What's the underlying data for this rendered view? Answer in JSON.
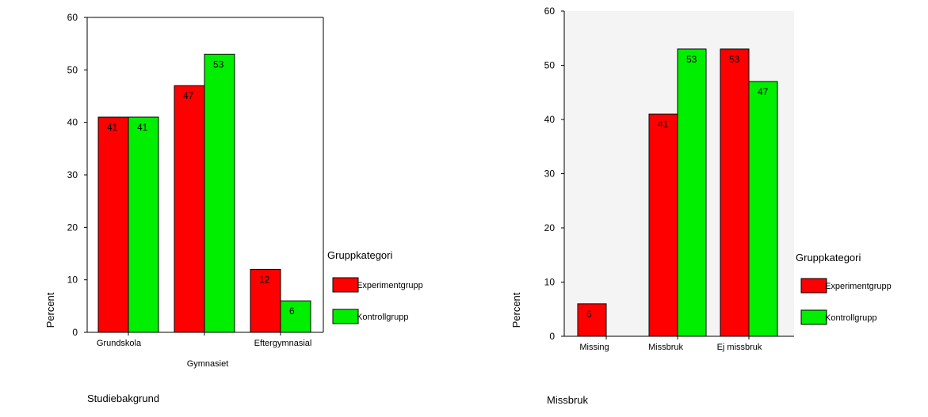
{
  "colors": {
    "experiment": "#ff0000",
    "control": "#00ee00",
    "plot_bg_right": "#f4f4f4"
  },
  "chart_data": [
    {
      "type": "bar",
      "categories": [
        "Grundskola",
        "Gymnasiet",
        "Eftergymnasial"
      ],
      "series": [
        {
          "name": "Experimentgrupp",
          "values": [
            41,
            47,
            12
          ],
          "labels": [
            "41",
            "47",
            "12"
          ]
        },
        {
          "name": "Kontrollgrupp",
          "values": [
            41,
            53,
            6
          ],
          "labels": [
            "41",
            "53",
            "6"
          ]
        }
      ],
      "ylim": [
        0,
        60
      ],
      "yticks": [
        "0",
        "10",
        "20",
        "30",
        "40",
        "50",
        "60"
      ],
      "xlabel": "Studiebakgrund",
      "ylabel": "Percent",
      "legend_title": "Gruppkategori",
      "legend": [
        "Experimentgrupp",
        "Kontrollgrupp"
      ],
      "legend_position": "right"
    },
    {
      "type": "bar",
      "categories": [
        "Missing",
        "Missbruk",
        "Ej missbruk"
      ],
      "series": [
        {
          "name": "Experimentgrupp",
          "values": [
            6,
            41,
            53
          ],
          "labels": [
            "6",
            "41",
            "53"
          ]
        },
        {
          "name": "Kontrollgrupp",
          "values": [
            0,
            53,
            47
          ],
          "labels": [
            "",
            "53",
            "47"
          ]
        }
      ],
      "ylim": [
        0,
        60
      ],
      "yticks": [
        "0",
        "10",
        "20",
        "30",
        "40",
        "50",
        "60"
      ],
      "xlabel": "Missbruk",
      "ylabel": "Percent",
      "legend_title": "Gruppkategori",
      "legend": [
        "Experimentgrupp",
        "Kontrollgrupp"
      ],
      "legend_position": "right"
    }
  ]
}
